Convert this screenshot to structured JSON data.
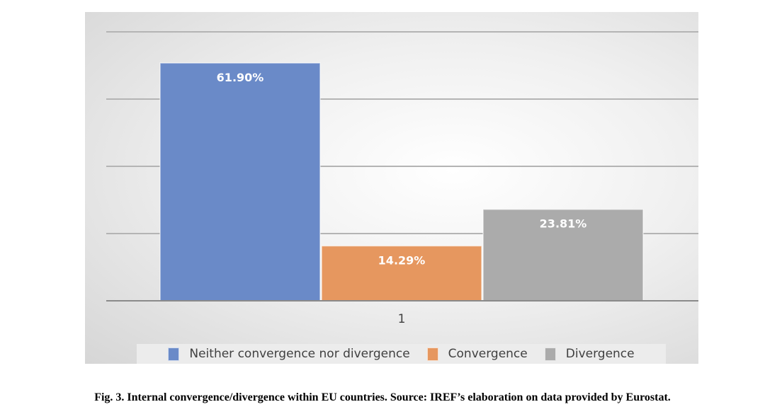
{
  "chart_data": {
    "type": "bar",
    "title": "",
    "xlabel": "",
    "ylabel": "",
    "categories": [
      "1"
    ],
    "ylim": [
      0,
      70
    ],
    "grid": true,
    "legend_position": "bottom",
    "series": [
      {
        "name": "Neither convergence nor divergence",
        "values": [
          61.9
        ],
        "label": "61.90%",
        "color": "#6a8ac8"
      },
      {
        "name": "Convergence",
        "values": [
          14.29
        ],
        "label": "14.29%",
        "color": "#e6975f"
      },
      {
        "name": "Divergence",
        "values": [
          23.81
        ],
        "label": "23.81%",
        "color": "#ababab"
      }
    ]
  },
  "caption": "Fig. 3. Internal convergence/divergence within EU countries. Source: IREF’s elaboration on data provided by Eurostat."
}
